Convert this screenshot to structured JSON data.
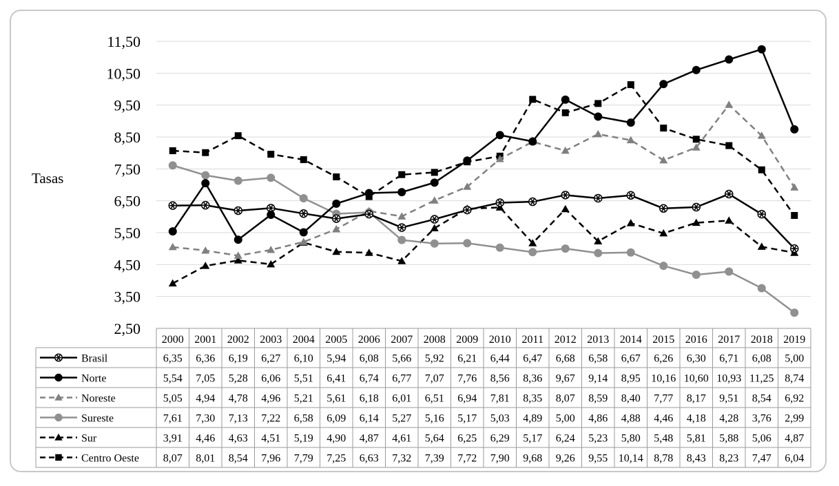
{
  "chart_data": {
    "type": "line",
    "title": "",
    "xlabel": "",
    "ylabel": "Tasas",
    "ylim": [
      2.5,
      11.5
    ],
    "yticks": [
      "2,50",
      "3,50",
      "4,50",
      "5,50",
      "6,50",
      "7,50",
      "8,50",
      "9,50",
      "10,50",
      "11,50"
    ],
    "grid": "horizontal",
    "legend_placement": "data-table-below",
    "categories": [
      "2000",
      "2001",
      "2002",
      "2003",
      "2004",
      "2005",
      "2006",
      "2007",
      "2008",
      "2009",
      "2010",
      "2011",
      "2012",
      "2013",
      "2014",
      "2015",
      "2016",
      "2017",
      "2018",
      "2019"
    ],
    "series": [
      {
        "name": "Brasil",
        "color": "#000000",
        "dash": "solid",
        "marker": "asterisk",
        "values": [
          6.35,
          6.36,
          6.19,
          6.27,
          6.1,
          5.94,
          6.08,
          5.66,
          5.92,
          6.21,
          6.44,
          6.47,
          6.68,
          6.58,
          6.67,
          6.26,
          6.3,
          6.71,
          6.08,
          5.0
        ],
        "labels": [
          "6,35",
          "6,36",
          "6,19",
          "6,27",
          "6,10",
          "5,94",
          "6,08",
          "5,66",
          "5,92",
          "6,21",
          "6,44",
          "6,47",
          "6,68",
          "6,58",
          "6,67",
          "6,26",
          "6,30",
          "6,71",
          "6,08",
          "5,00"
        ]
      },
      {
        "name": "Norte",
        "color": "#000000",
        "dash": "solid",
        "marker": "circle",
        "values": [
          5.54,
          7.05,
          5.28,
          6.06,
          5.51,
          6.41,
          6.74,
          6.77,
          7.07,
          7.76,
          8.56,
          8.36,
          9.67,
          9.14,
          8.95,
          10.16,
          10.6,
          10.93,
          11.25,
          8.74
        ],
        "labels": [
          "5,54",
          "7,05",
          "5,28",
          "6,06",
          "5,51",
          "6,41",
          "6,74",
          "6,77",
          "7,07",
          "7,76",
          "8,56",
          "8,36",
          "9,67",
          "9,14",
          "8,95",
          "10,16",
          "10,60",
          "10,93",
          "11,25",
          "8,74"
        ]
      },
      {
        "name": "Noreste",
        "color": "#808080",
        "dash": "dashed",
        "marker": "triangle",
        "values": [
          5.05,
          4.94,
          4.78,
          4.96,
          5.21,
          5.61,
          6.18,
          6.01,
          6.51,
          6.94,
          7.81,
          8.35,
          8.07,
          8.59,
          8.4,
          7.77,
          8.17,
          9.51,
          8.54,
          6.92
        ],
        "labels": [
          "5,05",
          "4,94",
          "4,78",
          "4,96",
          "5,21",
          "5,61",
          "6,18",
          "6,01",
          "6,51",
          "6,94",
          "7,81",
          "8,35",
          "8,07",
          "8,59",
          "8,40",
          "7,77",
          "8,17",
          "9,51",
          "8,54",
          "6,92"
        ]
      },
      {
        "name": "Sureste",
        "color": "#909090",
        "dash": "solid",
        "marker": "circle",
        "values": [
          7.61,
          7.3,
          7.13,
          7.22,
          6.58,
          6.09,
          6.14,
          5.27,
          5.16,
          5.17,
          5.03,
          4.89,
          5.0,
          4.86,
          4.88,
          4.46,
          4.18,
          4.28,
          3.76,
          2.99
        ],
        "labels": [
          "7,61",
          "7,30",
          "7,13",
          "7,22",
          "6,58",
          "6,09",
          "6,14",
          "5,27",
          "5,16",
          "5,17",
          "5,03",
          "4,89",
          "5,00",
          "4,86",
          "4,88",
          "4,46",
          "4,18",
          "4,28",
          "3,76",
          "2,99"
        ]
      },
      {
        "name": "Sur",
        "color": "#000000",
        "dash": "dashed",
        "marker": "triangle",
        "values": [
          3.91,
          4.46,
          4.63,
          4.51,
          5.19,
          4.9,
          4.87,
          4.61,
          5.64,
          6.25,
          6.29,
          5.17,
          6.24,
          5.23,
          5.8,
          5.48,
          5.81,
          5.88,
          5.06,
          4.87
        ],
        "labels": [
          "3,91",
          "4,46",
          "4,63",
          "4,51",
          "5,19",
          "4,90",
          "4,87",
          "4,61",
          "5,64",
          "6,25",
          "6,29",
          "5,17",
          "6,24",
          "5,23",
          "5,80",
          "5,48",
          "5,81",
          "5,88",
          "5,06",
          "4,87"
        ]
      },
      {
        "name": "Centro Oeste",
        "color": "#000000",
        "dash": "dashed",
        "marker": "square",
        "values": [
          8.07,
          8.01,
          8.54,
          7.96,
          7.79,
          7.25,
          6.63,
          7.32,
          7.39,
          7.72,
          7.9,
          9.68,
          9.26,
          9.55,
          10.14,
          8.78,
          8.43,
          8.23,
          7.47,
          6.04
        ],
        "labels": [
          "8,07",
          "8,01",
          "8,54",
          "7,96",
          "7,79",
          "7,25",
          "6,63",
          "7,32",
          "7,39",
          "7,72",
          "7,90",
          "9,68",
          "9,26",
          "9,55",
          "10,14",
          "8,78",
          "8,43",
          "8,23",
          "7,47",
          "6,04"
        ]
      }
    ]
  }
}
